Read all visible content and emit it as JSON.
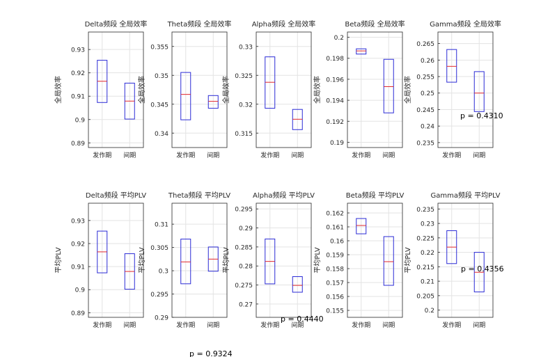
{
  "figure": {
    "stray_labels": [
      "p = 0.4310",
      "p = 0.4440",
      "p = 0.4356",
      "p = 0.9324"
    ]
  },
  "chart_data": [
    {
      "type": "boxplot",
      "title": "Delta频段 全局效率",
      "ylabel": "全局效率",
      "categories": [
        "发作期",
        "间期"
      ],
      "ylim": [
        0.888,
        0.9375
      ],
      "yticks": [
        "0.89",
        "0.9",
        "0.91",
        "0.92",
        "0.93"
      ],
      "grid": true,
      "boxes": [
        {
          "category": "发作期",
          "q1": 0.9073,
          "median": 0.9164,
          "q3": 0.9254
        },
        {
          "category": "间期",
          "q1": 0.9002,
          "median": 0.9079,
          "q3": 0.9156
        }
      ]
    },
    {
      "type": "boxplot",
      "title": "Theta频段 全局效率",
      "ylabel": "全局效率",
      "categories": [
        "发作期",
        "间期"
      ],
      "ylim": [
        0.3375,
        0.3575
      ],
      "yticks": [
        "0.34",
        "0.345",
        "0.35",
        "0.355"
      ],
      "grid": true,
      "boxes": [
        {
          "category": "发作期",
          "q1": 0.3423,
          "median": 0.3467,
          "q3": 0.3505
        },
        {
          "category": "间期",
          "q1": 0.3443,
          "median": 0.3455,
          "q3": 0.3465
        }
      ]
    },
    {
      "type": "boxplot",
      "title": "Alpha频段 全局效率",
      "ylabel": "全局效率",
      "categories": [
        "发作期",
        "间期"
      ],
      "ylim": [
        0.3125,
        0.3325
      ],
      "yticks": [
        "0.315",
        "0.32",
        "0.325",
        "0.33"
      ],
      "grid": true,
      "boxes": [
        {
          "category": "发作期",
          "q1": 0.3193,
          "median": 0.3238,
          "q3": 0.3282
        },
        {
          "category": "间期",
          "q1": 0.3156,
          "median": 0.3174,
          "q3": 0.3191
        }
      ]
    },
    {
      "type": "boxplot",
      "title": "Beta频段 全局效率",
      "ylabel": "全局效率",
      "categories": [
        "发作期",
        "间期"
      ],
      "ylim": [
        0.1895,
        0.2005
      ],
      "yticks": [
        "0.19",
        "0.192",
        "0.194",
        "0.196",
        "0.198",
        "0.2"
      ],
      "grid": true,
      "boxes": [
        {
          "category": "发作期",
          "q1": 0.1984,
          "median": 0.1987,
          "q3": 0.1989
        },
        {
          "category": "间期",
          "q1": 0.1928,
          "median": 0.1953,
          "q3": 0.1979
        }
      ]
    },
    {
      "type": "boxplot",
      "title": "Gamma频段 全局效率",
      "ylabel": "全局效率",
      "categories": [
        "发作期",
        "间期"
      ],
      "ylim": [
        0.2335,
        0.2685
      ],
      "yticks": [
        "0.235",
        "0.24",
        "0.245",
        "0.25",
        "0.255",
        "0.26",
        "0.265"
      ],
      "grid": true,
      "boxes": [
        {
          "category": "发作期",
          "q1": 0.2533,
          "median": 0.2581,
          "q3": 0.2632
        },
        {
          "category": "间期",
          "q1": 0.2444,
          "median": 0.25,
          "q3": 0.2565
        }
      ]
    },
    {
      "type": "boxplot",
      "title": "Delta频段 平均PLV",
      "ylabel": "平均PLV",
      "categories": [
        "发作期",
        "间期"
      ],
      "ylim": [
        0.888,
        0.9375
      ],
      "yticks": [
        "0.89",
        "0.9",
        "0.91",
        "0.92",
        "0.93"
      ],
      "grid": true,
      "boxes": [
        {
          "category": "发作期",
          "q1": 0.9073,
          "median": 0.9164,
          "q3": 0.9254
        },
        {
          "category": "间期",
          "q1": 0.9002,
          "median": 0.9079,
          "q3": 0.9156
        }
      ]
    },
    {
      "type": "boxplot",
      "title": "Theta频段 平均PLV",
      "ylabel": "平均PLV",
      "categories": [
        "发作期",
        "间期"
      ],
      "ylim": [
        0.29,
        0.3145
      ],
      "yticks": [
        "0.29",
        "0.295",
        "0.3",
        "0.305",
        "0.31"
      ],
      "grid": true,
      "boxes": [
        {
          "category": "发作期",
          "q1": 0.2972,
          "median": 0.3019,
          "q3": 0.3068
        },
        {
          "category": "间期",
          "q1": 0.2999,
          "median": 0.3025,
          "q3": 0.3051
        }
      ]
    },
    {
      "type": "boxplot",
      "title": "Alpha频段 平均PLV",
      "ylabel": "平均PLV",
      "categories": [
        "发作期",
        "间期"
      ],
      "ylim": [
        0.2665,
        0.2965
      ],
      "yticks": [
        "0.27",
        "0.275",
        "0.28",
        "0.285",
        "0.29",
        "0.295"
      ],
      "grid": true,
      "boxes": [
        {
          "category": "发作期",
          "q1": 0.2753,
          "median": 0.2812,
          "q3": 0.2871
        },
        {
          "category": "间期",
          "q1": 0.2731,
          "median": 0.2749,
          "q3": 0.2772
        }
      ]
    },
    {
      "type": "boxplot",
      "title": "Beta频段 平均PLV",
      "ylabel": "平均PLV",
      "categories": [
        "发作期",
        "间期"
      ],
      "ylim": [
        0.1545,
        0.1627
      ],
      "yticks": [
        "0.155",
        "0.156",
        "0.157",
        "0.158",
        "0.159",
        "0.16",
        "0.161",
        "0.162"
      ],
      "grid": true,
      "boxes": [
        {
          "category": "发作期",
          "q1": 0.1605,
          "median": 0.1611,
          "q3": 0.1616
        },
        {
          "category": "间期",
          "q1": 0.1568,
          "median": 0.1585,
          "q3": 0.1603
        }
      ]
    },
    {
      "type": "boxplot",
      "title": "Gamma频段 平均PLV",
      "ylabel": "平均PLV",
      "categories": [
        "发作期",
        "间期"
      ],
      "ylim": [
        0.1975,
        0.237
      ],
      "yticks": [
        "0.2",
        "0.205",
        "0.21",
        "0.215",
        "0.22",
        "0.225",
        "0.23",
        "0.235"
      ],
      "grid": true,
      "boxes": [
        {
          "category": "发作期",
          "q1": 0.2161,
          "median": 0.2218,
          "q3": 0.2275
        },
        {
          "category": "间期",
          "q1": 0.2063,
          "median": 0.2131,
          "q3": 0.22
        }
      ]
    }
  ],
  "colors": {
    "box": "#2b2bd6",
    "median": "#e0262c",
    "axis": "#262626",
    "grid": "#e3e3e3",
    "text": "#262626"
  }
}
